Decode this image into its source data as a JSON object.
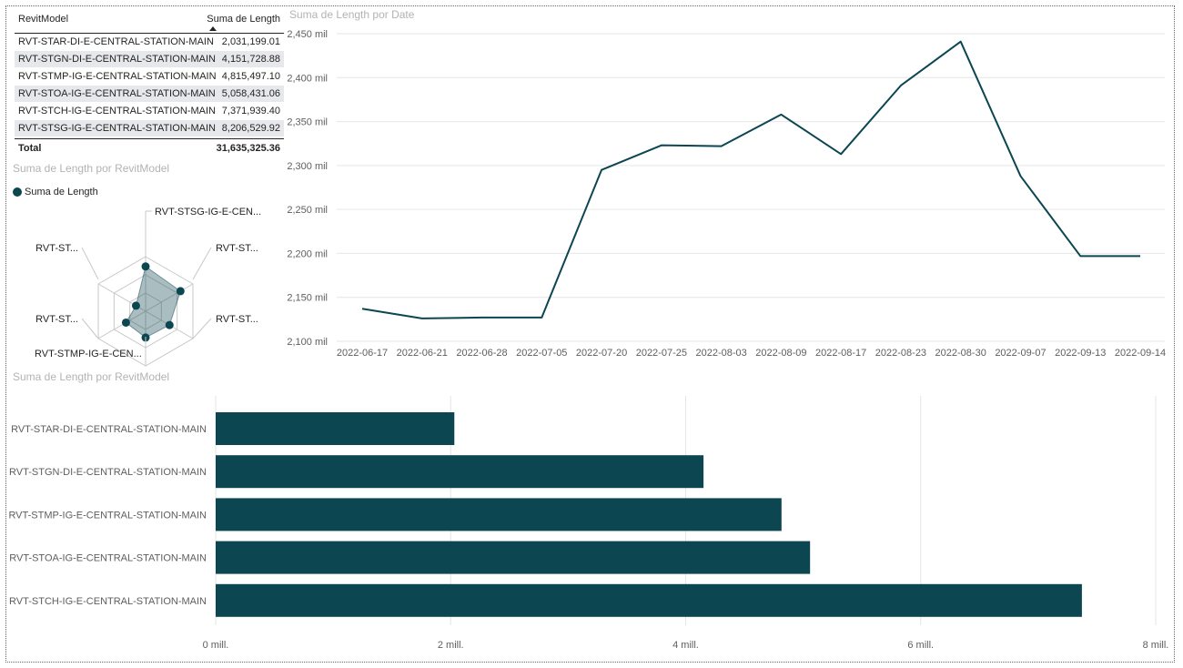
{
  "colors": {
    "accent": "#0b4651",
    "grid": "#e6e6e6",
    "title": "#b3b3b3",
    "text": "#605e5c",
    "row_alt": "#e7e8ec"
  },
  "table": {
    "headers": {
      "model": "RevitModel",
      "length": "Suma de Length"
    },
    "rows": [
      {
        "model": "RVT-STAR-DI-E-CENTRAL-STATION-MAIN",
        "length": "2,031,199.01"
      },
      {
        "model": "RVT-STGN-DI-E-CENTRAL-STATION-MAIN",
        "length": "4,151,728.88"
      },
      {
        "model": "RVT-STMP-IG-E-CENTRAL-STATION-MAIN",
        "length": "4,815,497.10"
      },
      {
        "model": "RVT-STOA-IG-E-CENTRAL-STATION-MAIN",
        "length": "5,058,431.06"
      },
      {
        "model": "RVT-STCH-IG-E-CENTRAL-STATION-MAIN",
        "length": "7,371,939.40"
      },
      {
        "model": "RVT-STSG-IG-E-CENTRAL-STATION-MAIN",
        "length": "8,206,529.92"
      }
    ],
    "total": {
      "label": "Total",
      "length": "31,635,325.36"
    }
  },
  "chart_data": [
    {
      "type": "radar",
      "title": "Suma de Length por RevitModel",
      "legend": [
        "Suma de Length"
      ],
      "legend_position": "top-left",
      "axis_labels": [
        "RVT-STSG-IG-E-CEN...",
        "RVT-ST...",
        "RVT-ST...",
        "RVT-STMP-IG-E-CEN...",
        "RVT-ST...",
        "RVT-ST..."
      ],
      "values": [
        8206529.92,
        7371939.4,
        5058431.06,
        4815497.1,
        4151728.88,
        2031199.01
      ],
      "max": 10000000,
      "rings": 3
    },
    {
      "type": "line",
      "title": "Suma de Length por Date",
      "x": [
        "2022-06-17",
        "2022-06-21",
        "2022-06-28",
        "2022-07-05",
        "2022-07-20",
        "2022-07-25",
        "2022-08-03",
        "2022-08-09",
        "2022-08-17",
        "2022-08-23",
        "2022-08-30",
        "2022-09-07",
        "2022-09-13",
        "2022-09-14"
      ],
      "y_thousands": [
        2137,
        2126,
        2127,
        2127,
        2295,
        2323,
        2322,
        2358,
        2313,
        2391,
        2441,
        2288,
        2197,
        2197
      ],
      "ylim": [
        2100,
        2450
      ],
      "yticks": [
        2100,
        2150,
        2200,
        2250,
        2300,
        2350,
        2400,
        2450
      ],
      "ytick_labels": [
        "2,100 mil",
        "2,150 mil",
        "2,200 mil",
        "2,250 mil",
        "2,300 mil",
        "2,350 mil",
        "2,400 mil",
        "2,450 mil"
      ],
      "grid": true
    },
    {
      "type": "bar",
      "orientation": "horizontal",
      "title": "Suma de Length por RevitModel",
      "categories": [
        "RVT-STAR-DI-E-CENTRAL-STATION-MAIN",
        "RVT-STGN-DI-E-CENTRAL-STATION-MAIN",
        "RVT-STMP-IG-E-CENTRAL-STATION-MAIN",
        "RVT-STOA-IG-E-CENTRAL-STATION-MAIN",
        "RVT-STCH-IG-E-CENTRAL-STATION-MAIN"
      ],
      "values": [
        2031199.01,
        4151728.88,
        4815497.1,
        5058431.06,
        7371939.4
      ],
      "xlim": [
        0,
        8000000
      ],
      "xticks": [
        0,
        2000000,
        4000000,
        6000000,
        8000000
      ],
      "xtick_labels": [
        "0 mill.",
        "2 mill.",
        "4 mill.",
        "6 mill.",
        "8 mill."
      ],
      "grid": true
    }
  ]
}
